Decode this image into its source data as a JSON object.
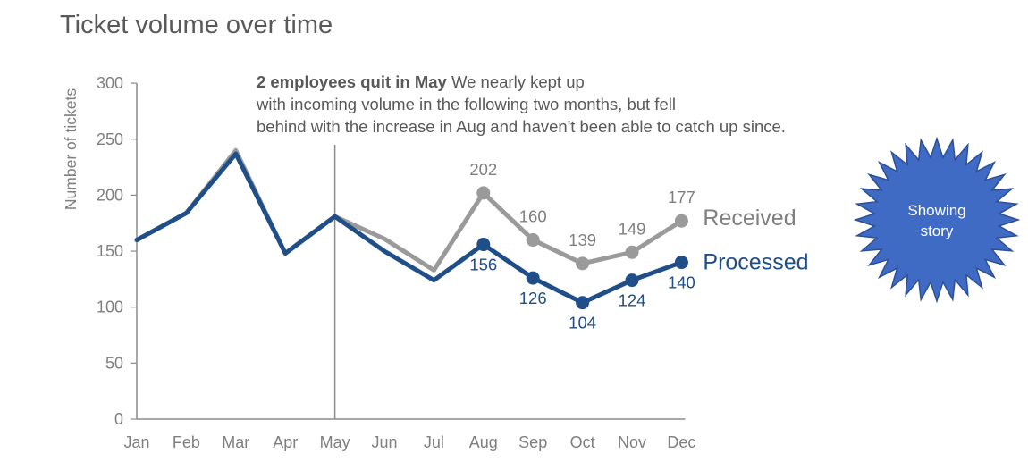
{
  "chart_data": {
    "type": "line",
    "title": "Ticket volume over time",
    "ylabel": "Number of tickets",
    "xlabel": "",
    "categories": [
      "Jan",
      "Feb",
      "Mar",
      "Apr",
      "May",
      "Jun",
      "Jul",
      "Aug",
      "Sep",
      "Oct",
      "Nov",
      "Dec"
    ],
    "ylim": [
      0,
      300
    ],
    "yticks": [
      0,
      50,
      100,
      150,
      200,
      250,
      300
    ],
    "grid": false,
    "series": [
      {
        "name": "Received",
        "color": "#9a9a9a",
        "values": [
          160,
          184,
          240,
          148,
          181,
          161,
          133,
          202,
          160,
          139,
          149,
          177
        ],
        "labeled_from": "Aug"
      },
      {
        "name": "Processed",
        "color": "#1f4e88",
        "values": [
          160,
          184,
          237,
          148,
          181,
          150,
          124,
          156,
          126,
          104,
          124,
          140
        ],
        "labeled_from": "Aug"
      }
    ],
    "annotation": {
      "at": "May",
      "bold": "2 employees quit in May",
      "text": ". We nearly kept up with incoming volume in the following two months, but fell behind with the increase in Aug and haven't been able to catch up since."
    }
  },
  "badge": {
    "text": "Showing story",
    "color": "#3f6bc4"
  }
}
